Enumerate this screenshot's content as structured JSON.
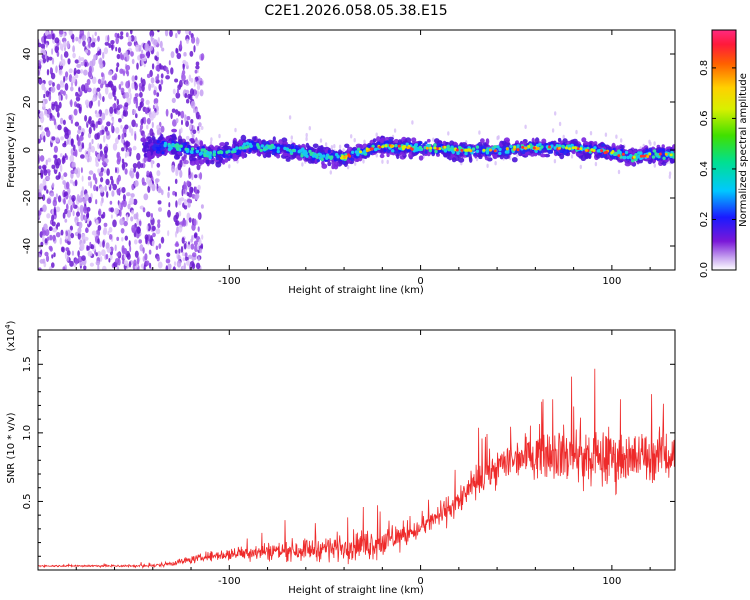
{
  "title": "C2E1.2026.058.05.38.E15",
  "chart_data": [
    {
      "type": "heatmap",
      "name": "spectrogram",
      "xlabel": "Height of straight line (km)",
      "ylabel": "Frequency (Hz)",
      "xlim": [
        -200,
        133
      ],
      "ylim": [
        -50,
        50
      ],
      "xticks": [
        -100,
        0,
        100
      ],
      "yticks": [
        -40,
        -20,
        0,
        20,
        40
      ],
      "ytick_labels": [
        "-40",
        "-20",
        "0",
        "20",
        "40"
      ],
      "signal_trace": {
        "x": [
          -140,
          -130,
          -120,
          -110,
          -100,
          -90,
          -80,
          -70,
          -60,
          -50,
          -40,
          -30,
          -20,
          -10,
          0,
          20,
          40,
          60,
          80,
          100,
          110,
          120,
          133
        ],
        "y": [
          1,
          2,
          0,
          -2,
          -1,
          2,
          1,
          0,
          -1,
          -3,
          -3,
          -1,
          2,
          1,
          1,
          0,
          0,
          1,
          1,
          -1,
          -3,
          -2,
          -2
        ]
      },
      "colorbar": {
        "label": "Normalized spectral amplitude",
        "range": [
          0,
          0.95
        ],
        "ticks": [
          0.0,
          0.2,
          0.4,
          0.6,
          0.8
        ],
        "tick_labels": [
          "0.0",
          "0.2",
          "0.4",
          "0.6",
          "0.8"
        ]
      }
    },
    {
      "type": "line",
      "name": "snr",
      "xlabel": "Height of straight line (km)",
      "ylabel": "SNR (10 * v/v)",
      "exponent_label": "(x10",
      "exponent_power": "4",
      "xlim": [
        -200,
        133
      ],
      "ylim": [
        0,
        17500
      ],
      "xticks": [
        -100,
        0,
        100
      ],
      "yticks": [
        5000,
        10000,
        15000
      ],
      "ytick_labels": [
        "0.5",
        "1.0",
        "1.5"
      ],
      "color": "#ee2a2a",
      "envelope": {
        "x": [
          -200,
          -140,
          -130,
          -110,
          -90,
          -60,
          -40,
          -20,
          -10,
          0,
          10,
          20,
          30,
          40,
          50,
          60,
          70,
          80,
          90,
          100,
          110,
          120,
          133
        ],
        "mean": [
          300,
          300,
          500,
          1000,
          1300,
          1500,
          1700,
          2000,
          2500,
          3000,
          4000,
          5000,
          6500,
          7500,
          8200,
          8500,
          8600,
          8300,
          8100,
          8200,
          8100,
          8300,
          8500
        ],
        "spread": [
          80,
          150,
          300,
          500,
          900,
          1200,
          1500,
          1800,
          1500,
          900,
          1400,
          1500,
          1800,
          2000,
          2200,
          2500,
          2900,
          3200,
          3300,
          3300,
          3000,
          2700,
          2500
        ]
      }
    }
  ]
}
